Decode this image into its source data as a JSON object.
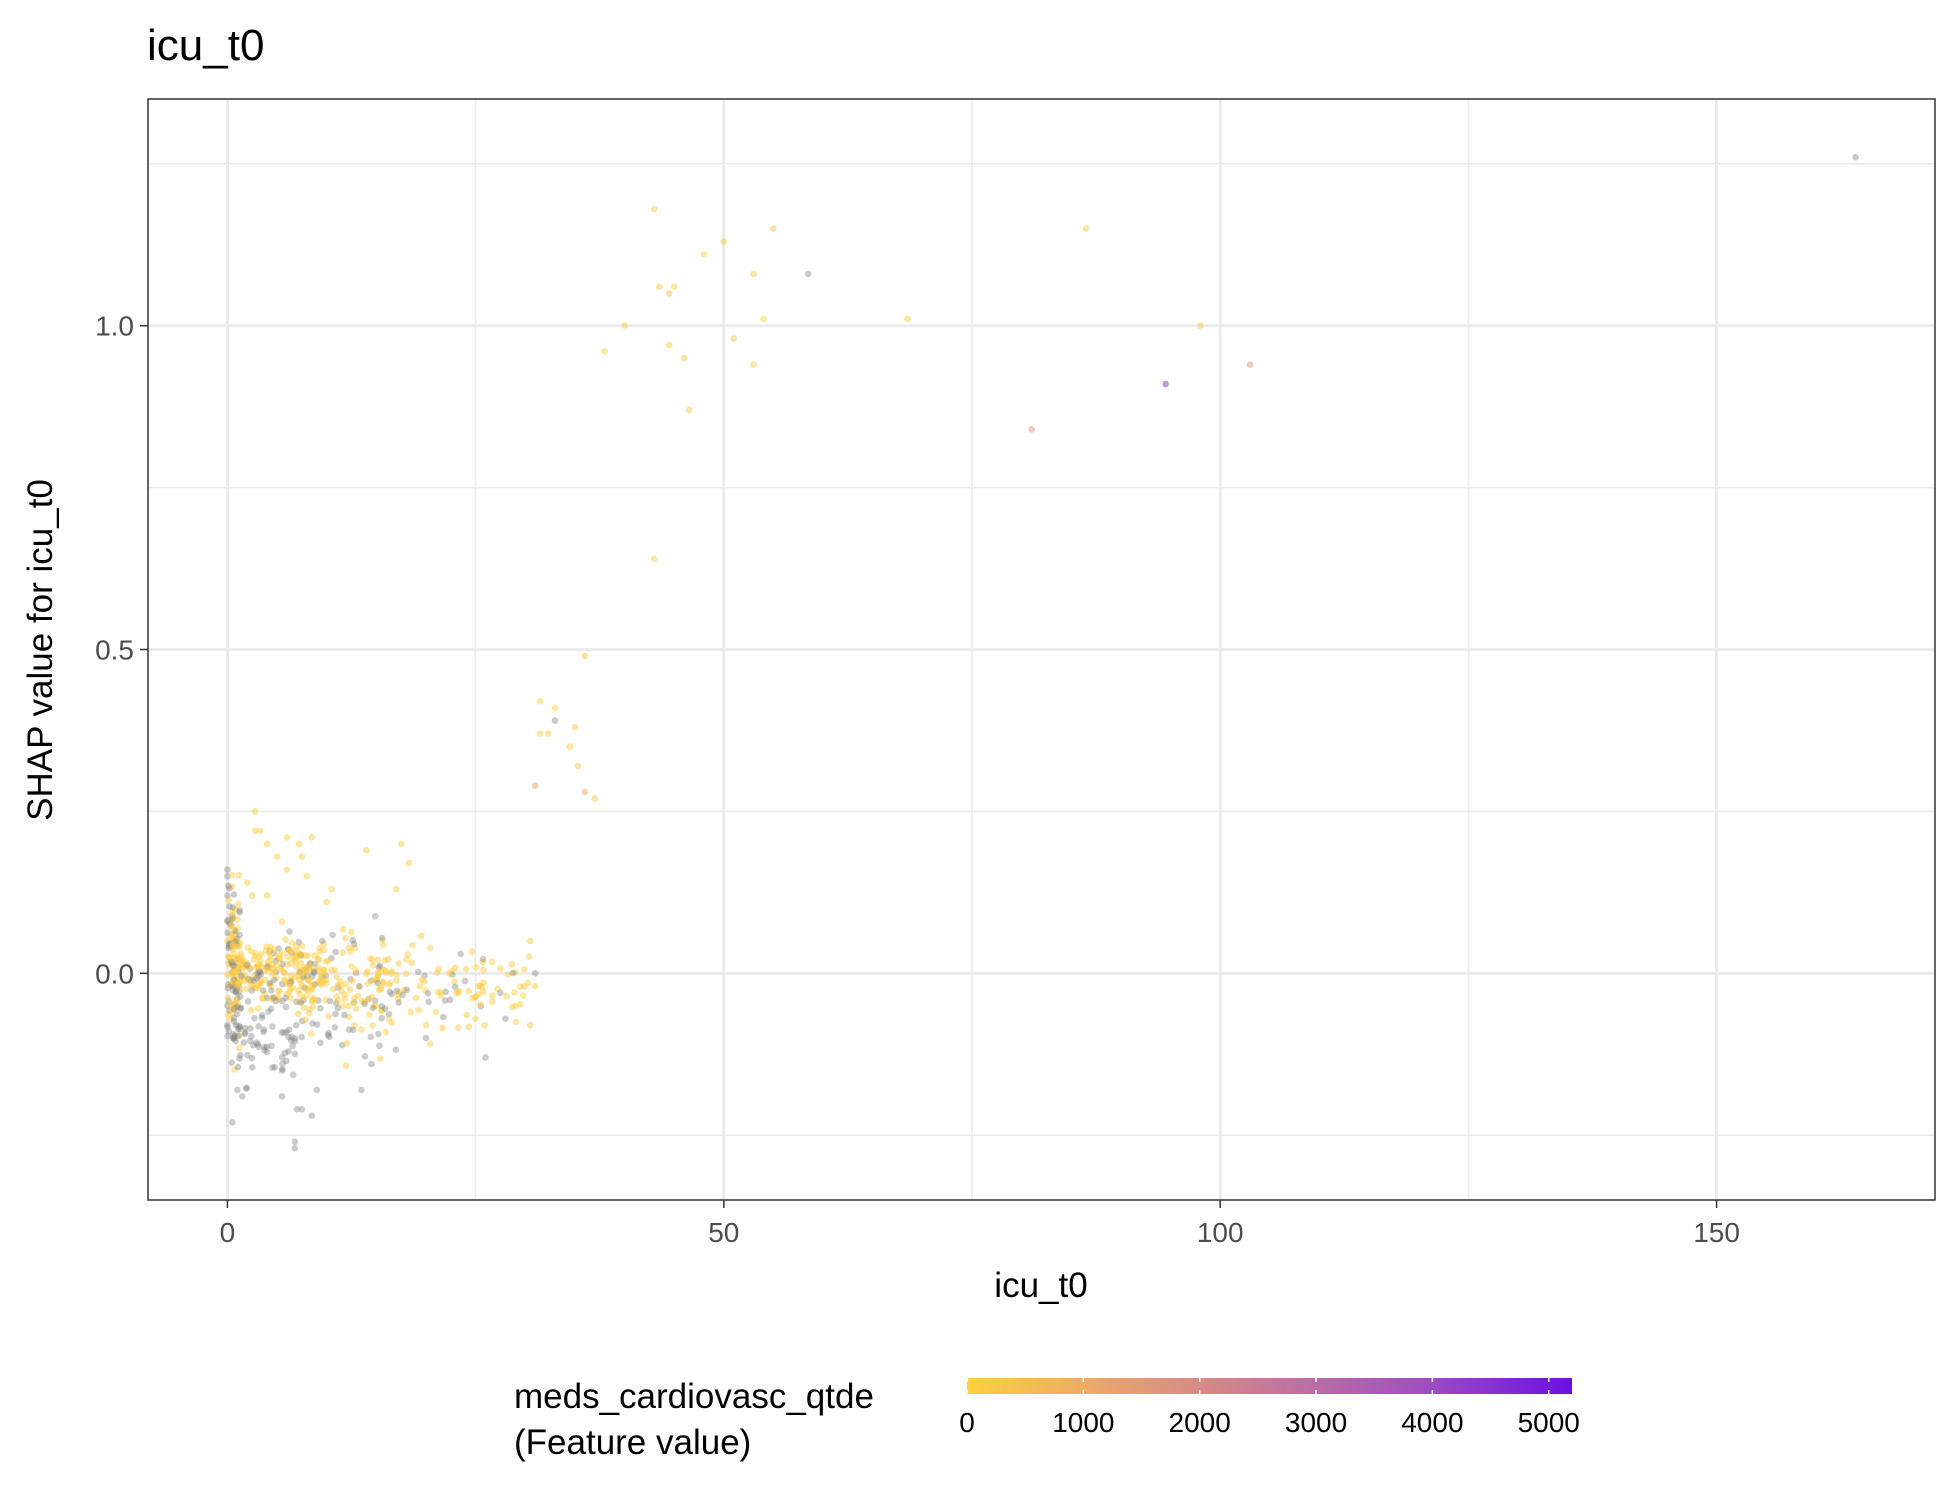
{
  "chart_data": {
    "type": "scatter",
    "title": "icu_t0",
    "xlabel": "icu_t0",
    "ylabel": "SHAP value for icu_t0",
    "xlim": [
      -8,
      172
    ],
    "ylim": [
      -0.35,
      1.35
    ],
    "x_ticks": [
      0,
      50,
      100,
      150
    ],
    "x_tick_labels": [
      "0",
      "50",
      "100",
      "150"
    ],
    "y_ticks": [
      0.0,
      0.5,
      1.0
    ],
    "y_tick_labels": [
      "0.0",
      "0.5",
      "1.0"
    ],
    "grid": true,
    "legend": {
      "title_lines": [
        "meds_cardiovasc_qtde",
        "(Feature value)"
      ],
      "placement": "bottom",
      "type": "colorbar",
      "range": [
        0,
        5200
      ],
      "ticks": [
        0,
        1000,
        2000,
        3000,
        4000,
        5000
      ],
      "tick_labels": [
        "0",
        "1000",
        "2000",
        "3000",
        "4000",
        "5000"
      ],
      "colors": [
        "#FFD040",
        "#E8A070",
        "#C87898",
        "#A050C0",
        "#6A10E0"
      ]
    },
    "na_color": "#808080",
    "points": [
      {
        "x": 164,
        "y": 1.26,
        "c": null
      },
      {
        "x": 43,
        "y": 1.18,
        "c": 50
      },
      {
        "x": 55,
        "y": 1.15,
        "c": 300
      },
      {
        "x": 50,
        "y": 1.13,
        "c": 100
      },
      {
        "x": 48,
        "y": 1.11,
        "c": 80
      },
      {
        "x": 53,
        "y": 1.08,
        "c": 150
      },
      {
        "x": 58.5,
        "y": 1.08,
        "c": null
      },
      {
        "x": 43.5,
        "y": 1.06,
        "c": 200
      },
      {
        "x": 45,
        "y": 1.06,
        "c": 120
      },
      {
        "x": 44.5,
        "y": 1.05,
        "c": 600
      },
      {
        "x": 54,
        "y": 1.01,
        "c": 80
      },
      {
        "x": 40,
        "y": 1.0,
        "c": 60
      },
      {
        "x": 51,
        "y": 0.98,
        "c": 200
      },
      {
        "x": 44.5,
        "y": 0.97,
        "c": 50
      },
      {
        "x": 38,
        "y": 0.96,
        "c": 30
      },
      {
        "x": 46,
        "y": 0.95,
        "c": 300
      },
      {
        "x": 53,
        "y": 0.94,
        "c": 100
      },
      {
        "x": 46.5,
        "y": 0.87,
        "c": 250
      },
      {
        "x": 86.5,
        "y": 1.15,
        "c": 150
      },
      {
        "x": 68.5,
        "y": 1.01,
        "c": 100
      },
      {
        "x": 98,
        "y": 1.0,
        "c": 200
      },
      {
        "x": 103,
        "y": 0.94,
        "c": 1500
      },
      {
        "x": 94.5,
        "y": 0.91,
        "c": 4500
      },
      {
        "x": 81,
        "y": 0.84,
        "c": 1800
      },
      {
        "x": 43,
        "y": 0.64,
        "c": 100
      },
      {
        "x": 36,
        "y": 0.49,
        "c": 150
      },
      {
        "x": 31.5,
        "y": 0.42,
        "c": 40
      },
      {
        "x": 33,
        "y": 0.41,
        "c": 80
      },
      {
        "x": 33,
        "y": 0.39,
        "c": null
      },
      {
        "x": 35,
        "y": 0.38,
        "c": 150
      },
      {
        "x": 31.5,
        "y": 0.37,
        "c": 100
      },
      {
        "x": 32.3,
        "y": 0.37,
        "c": 200
      },
      {
        "x": 34.5,
        "y": 0.35,
        "c": 100
      },
      {
        "x": 35.3,
        "y": 0.32,
        "c": 250
      },
      {
        "x": 31,
        "y": 0.29,
        "c": 1300
      },
      {
        "x": 36,
        "y": 0.28,
        "c": 1100
      },
      {
        "x": 37,
        "y": 0.27,
        "c": 300
      },
      {
        "x": 2.8,
        "y": 0.25,
        "c": 80
      },
      {
        "x": 2.8,
        "y": 0.22,
        "c": 50
      },
      {
        "x": 3.3,
        "y": 0.22,
        "c": 40
      },
      {
        "x": 6,
        "y": 0.21,
        "c": 60
      },
      {
        "x": 8.5,
        "y": 0.21,
        "c": 70
      },
      {
        "x": 7.2,
        "y": 0.2,
        "c": 80
      },
      {
        "x": 4,
        "y": 0.2,
        "c": 60
      },
      {
        "x": 14,
        "y": 0.19,
        "c": 60
      },
      {
        "x": 17.5,
        "y": 0.2,
        "c": 70
      },
      {
        "x": 5,
        "y": 0.18,
        "c": 40
      },
      {
        "x": 7.5,
        "y": 0.18,
        "c": 50
      },
      {
        "x": 18.3,
        "y": 0.17,
        "c": 70
      },
      {
        "x": 2,
        "y": 0.14,
        "c": 60
      },
      {
        "x": 6,
        "y": 0.16,
        "c": 40
      },
      {
        "x": 8,
        "y": 0.15,
        "c": 50
      },
      {
        "x": 4,
        "y": 0.12,
        "c": 60
      },
      {
        "x": 2.5,
        "y": 0.12,
        "c": 50
      },
      {
        "x": 10,
        "y": 0.11,
        "c": 40
      },
      {
        "x": 17,
        "y": 0.13,
        "c": 50
      },
      {
        "x": 30.5,
        "y": 0.05,
        "c": 60
      },
      {
        "x": 10.5,
        "y": 0.13,
        "c": 40
      },
      {
        "x": 5.5,
        "y": 0.08,
        "c": 60
      },
      {
        "x": 23.5,
        "y": 0.03,
        "c": null
      },
      {
        "x": 31,
        "y": 0.0,
        "c": null
      },
      {
        "x": 31,
        "y": -0.02,
        "c": 80
      },
      {
        "x": 30.5,
        "y": -0.08,
        "c": 60
      },
      {
        "x": 29,
        "y": -0.05,
        "c": 40
      },
      {
        "x": 28,
        "y": -0.07,
        "c": null
      },
      {
        "x": 26,
        "y": -0.13,
        "c": null
      },
      {
        "x": 25,
        "y": -0.07,
        "c": 60
      },
      {
        "x": 21,
        "y": -0.06,
        "c": 40
      },
      {
        "x": 20,
        "y": -0.08,
        "c": 60
      },
      {
        "x": 20,
        "y": -0.1,
        "c": null
      },
      {
        "x": 13.5,
        "y": -0.18,
        "c": null
      },
      {
        "x": 14.5,
        "y": -0.14,
        "c": null
      },
      {
        "x": 9,
        "y": -0.18,
        "c": null
      },
      {
        "x": 7,
        "y": -0.21,
        "c": null
      },
      {
        "x": 7.5,
        "y": -0.21,
        "c": null
      },
      {
        "x": 8.5,
        "y": -0.22,
        "c": null
      },
      {
        "x": 6.8,
        "y": -0.26,
        "c": null
      },
      {
        "x": 6.8,
        "y": -0.27,
        "c": null
      },
      {
        "x": 5.5,
        "y": -0.15,
        "c": null
      },
      {
        "x": 5.5,
        "y": -0.19,
        "c": null
      },
      {
        "x": 1.5,
        "y": -0.19,
        "c": null
      },
      {
        "x": 0.5,
        "y": -0.23,
        "c": null
      },
      {
        "x": 1,
        "y": -0.18,
        "c": null
      },
      {
        "x": 0,
        "y": 0.16,
        "c": null
      },
      {
        "x": 0,
        "y": 0.15,
        "c": null
      },
      {
        "x": 0,
        "y": 0.12,
        "c": null
      },
      {
        "x": 0,
        "y": 0.08,
        "c": null
      },
      {
        "x": 0,
        "y": 0.05,
        "c": 60
      },
      {
        "x": 0,
        "y": -0.05,
        "c": null
      },
      {
        "x": 0,
        "y": -0.08,
        "c": null
      }
    ],
    "clusters": [
      {
        "x_min": 0,
        "x_max": 1.3,
        "y_mean": 0.02,
        "y_sd": 0.06,
        "n": 110,
        "grey_frac": 0.45
      },
      {
        "x_min": 0.5,
        "x_max": 10,
        "y_mean": 0.0,
        "y_sd": 0.025,
        "n": 220,
        "grey_frac": 0.15
      },
      {
        "x_min": 0.5,
        "x_max": 7,
        "y_mean": -0.09,
        "y_sd": 0.045,
        "n": 90,
        "grey_frac": 0.95
      },
      {
        "x_min": 7,
        "x_max": 16,
        "y_mean": -0.005,
        "y_sd": 0.035,
        "n": 110,
        "grey_frac": 0.2
      },
      {
        "x_min": 7,
        "x_max": 17,
        "y_mean": -0.08,
        "y_sd": 0.03,
        "n": 35,
        "grey_frac": 0.75
      },
      {
        "x_min": 15,
        "x_max": 26,
        "y_mean": -0.015,
        "y_sd": 0.035,
        "n": 85,
        "grey_frac": 0.25
      },
      {
        "x_min": 24,
        "x_max": 30.5,
        "y_mean": -0.03,
        "y_sd": 0.03,
        "n": 30,
        "grey_frac": 0.15
      }
    ]
  }
}
